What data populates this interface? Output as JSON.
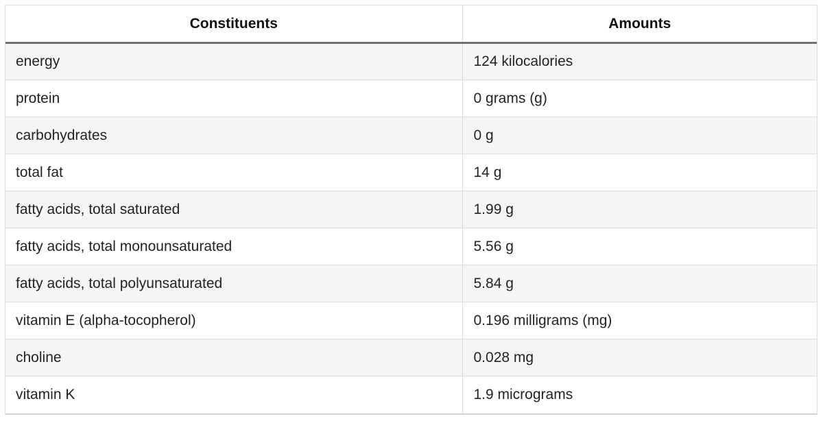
{
  "table": {
    "headers": [
      "Constituents",
      "Amounts"
    ],
    "rows": [
      [
        "energy",
        "124 kilocalories"
      ],
      [
        "protein",
        "0 grams (g)"
      ],
      [
        "carbohydrates",
        "0 g"
      ],
      [
        "total fat",
        "14 g"
      ],
      [
        "fatty acids, total saturated",
        "1.99 g"
      ],
      [
        "fatty acids, total monounsaturated",
        "5.56 g"
      ],
      [
        "fatty acids, total polyunsaturated",
        "5.84 g"
      ],
      [
        "vitamin E (alpha-tocopherol)",
        "0.196 milligrams (mg)"
      ],
      [
        "choline",
        "0.028 mg"
      ],
      [
        "vitamin K",
        "1.9 micrograms"
      ]
    ]
  }
}
